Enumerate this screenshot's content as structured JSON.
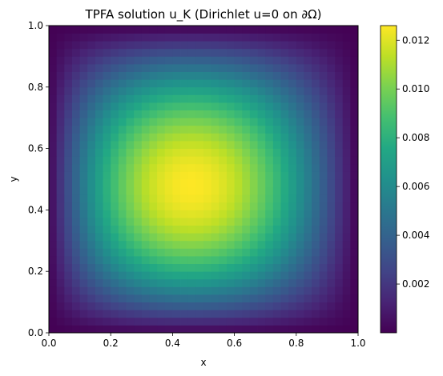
{
  "chart_data": {
    "type": "heatmap",
    "title": "TPFA solution u_K (Dirichlet u=0 on ∂Ω)",
    "xlabel": "x",
    "ylabel": "y",
    "xlim": [
      0.0,
      1.0
    ],
    "ylim": [
      0.0,
      1.0
    ],
    "x_ticks": [
      "0.0",
      "0.2",
      "0.4",
      "0.6",
      "0.8",
      "1.0"
    ],
    "y_ticks": [
      "0.0",
      "0.2",
      "0.4",
      "0.6",
      "0.8",
      "1.0"
    ],
    "grid": false,
    "colormap": "viridis",
    "colorbar": {
      "min": 0.0,
      "max": 0.0126,
      "ticks": [
        "0.002",
        "0.004",
        "0.006",
        "0.008",
        "0.010",
        "0.012"
      ],
      "tick_values": [
        0.002,
        0.004,
        0.006,
        0.008,
        0.01,
        0.012
      ]
    },
    "grid_resolution": 40,
    "field": {
      "description": "smooth single-peak field vanishing on all four edges",
      "peak_value": 0.0126,
      "peak_location": [
        0.46,
        0.48
      ]
    }
  }
}
